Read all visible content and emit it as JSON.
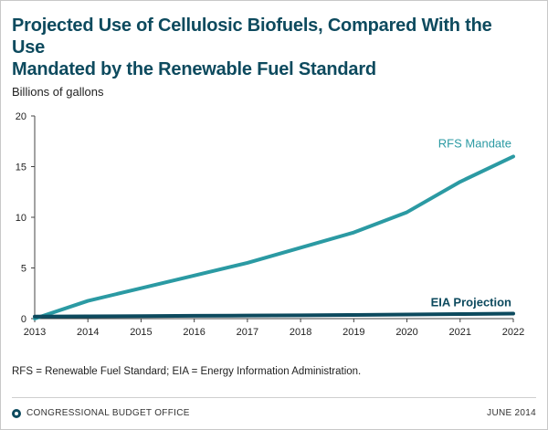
{
  "header": {
    "title_line1": "Projected Use of Cellulosic Biofuels, Compared With the Use",
    "title_line2": "Mandated by the Renewable Fuel Standard"
  },
  "chart_data": {
    "type": "line",
    "ylabel": "Billions of gallons",
    "xlabel": "",
    "ylim": [
      0,
      20
    ],
    "yticks": [
      0,
      5,
      10,
      15,
      20
    ],
    "x": [
      2013,
      2014,
      2015,
      2016,
      2017,
      2018,
      2019,
      2020,
      2021,
      2022
    ],
    "grid": false,
    "series": [
      {
        "name": "RFS Mandate",
        "color": "#2b9aa3",
        "values": [
          0.0,
          1.75,
          3.0,
          4.25,
          5.5,
          7.0,
          8.5,
          10.5,
          13.5,
          16.0
        ]
      },
      {
        "name": "EIA Projection",
        "color": "#0d4a5e",
        "values": [
          0.2,
          0.22,
          0.25,
          0.28,
          0.3,
          0.33,
          0.36,
          0.4,
          0.45,
          0.5
        ]
      }
    ]
  },
  "footnote": "RFS = Renewable Fuel Standard; EIA = Energy Information Administration.",
  "footer": {
    "agency": "CONGRESSIONAL BUDGET OFFICE",
    "date": "JUNE 2014"
  }
}
